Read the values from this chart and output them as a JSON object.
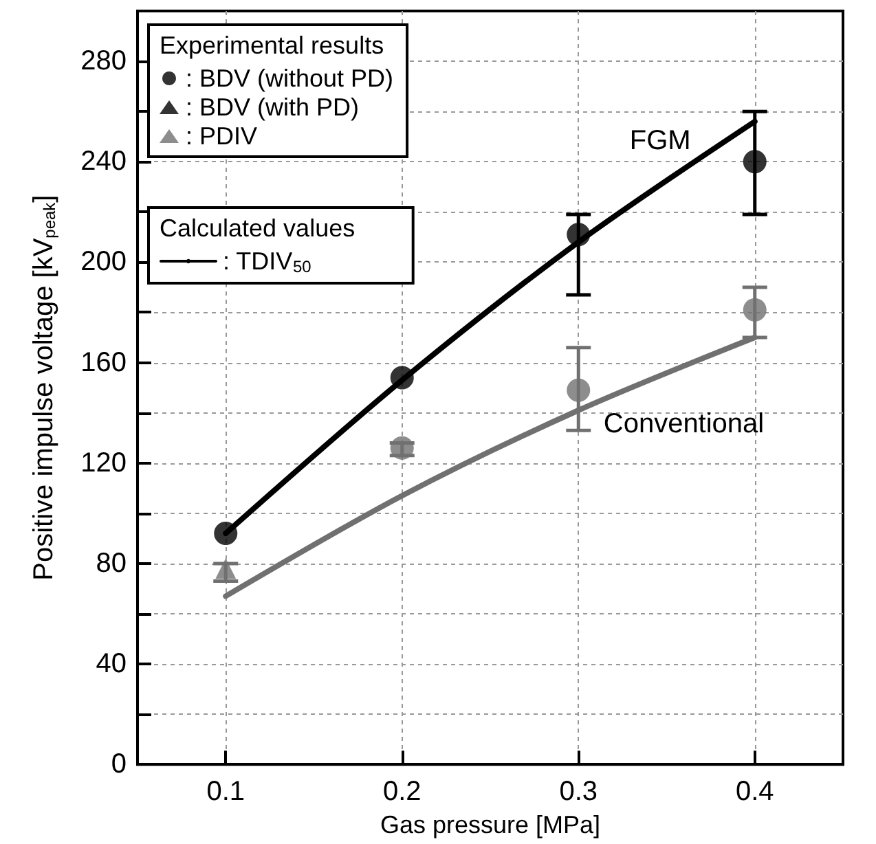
{
  "chart_data": {
    "type": "scatter",
    "xlabel": "Gas pressure [MPa]",
    "ylabel": "Positive impulse voltage [kV$_{peak}$]",
    "legend_title": "Experimental results",
    "legend": "top left",
    "grid": true,
    "marker": "circle",
    "x": [
      0.1,
      0.2,
      0.3,
      0.4
    ],
    "xlim": [
      0.05,
      0.45
    ],
    "xticks": [
      0.1,
      0.2,
      0.3,
      0.4
    ],
    "ylim": [
      0,
      300
    ],
    "yticks": [
      0,
      {
        "value": 20,
        "label": null
      },
      40,
      {
        "value": 60,
        "label": null
      },
      80,
      {
        "value": 100,
        "label": null
      },
      120,
      {
        "value": 140,
        "label": null
      },
      160,
      {
        "value": 180,
        "label": null
      },
      200,
      {
        "value": 220,
        "label": null
      },
      240,
      {
        "value": 260,
        "label": null
      },
      280,
      {
        "value": 300,
        "label": null
      }
    ],
    "series": [
      {
        "name": ": BDV (without PD)",
        "color": "#000000",
        "values": [
          92,
          154,
          211,
          240
        ],
        "errors": [
          null,
          null,
          [
            187,
            219
          ],
          [
            219,
            260
          ]
        ]
      },
      {
        "color": "#707070",
        "values": [
          null,
          126,
          149,
          181
        ],
        "errors": [
          null,
          [
            123,
            128
          ],
          [
            133,
            166
          ],
          [
            170,
            190
          ]
        ]
      },
      {
        "name": ": BDV (with PD)",
        "marker": "triangle",
        "color": "#000000",
        "values": [
          null,
          null,
          null,
          null
        ]
      },
      {
        "name": ": PDIV",
        "marker": "triangle",
        "color": "#707070",
        "values": [
          78,
          null,
          null,
          null
        ],
        "errors": [
          [
            73,
            80
          ],
          null,
          null,
          null
        ]
      },
      {
        "name": ": TDIV$_{50}$",
        "type": "line",
        "marker": "none",
        "color": "#000000",
        "values": [
          92,
          153,
          208,
          256
        ]
      },
      {
        "type": "line",
        "marker": "none",
        "color": "#707070",
        "values": [
          67,
          107,
          141,
          170
        ]
      }
    ],
    "annotations": [
      "Calculated values",
      "FGM",
      "Conventional"
    ]
  }
}
